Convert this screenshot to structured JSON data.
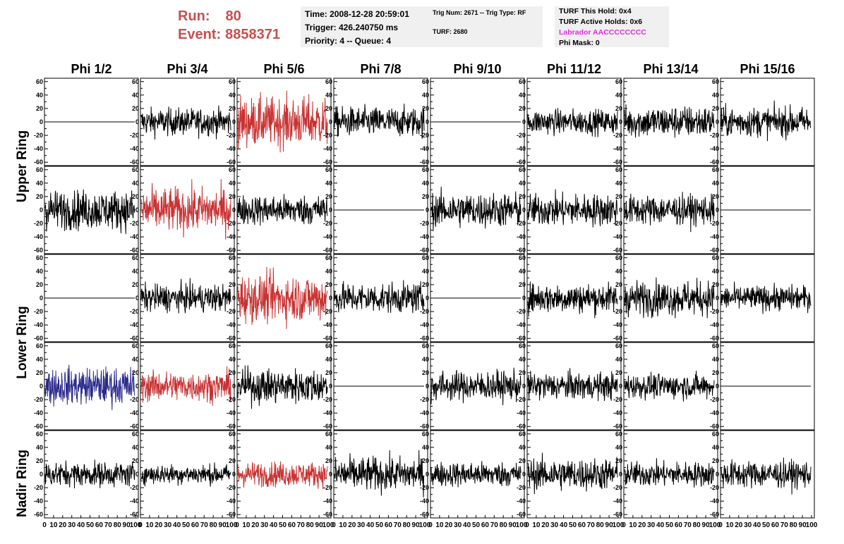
{
  "header": {
    "run_label": "Run:",
    "run_value": "80",
    "event_label": "Event:",
    "event_value": "8858371"
  },
  "info_box_1": {
    "time": "Time: 2008-12-28 20:59:01",
    "trigger": "Trigger: 426.240750 ms",
    "priority": "Priority: 4 -- Queue: 4"
  },
  "info_box_2": {
    "trig": "Trig Num: 2671 -- Trig Type: RF",
    "turf": "TURF: 2680"
  },
  "info_box_3": {
    "hold": "TURF This Hold: 0x4",
    "active": "TURF Active Holds: 0x6",
    "labrador": "Labrador AACCCCCCCC",
    "mask": "Phi Mask: 0"
  },
  "colors": {
    "normal": "#000000",
    "triggered": "#c83232",
    "highlight": "#2b2b8c",
    "labrador": "#e22be0",
    "run_text": "#c84f4f",
    "box_bg": "#f0f0f0"
  },
  "chart_data": {
    "type": "line",
    "columns": [
      "Phi 1/2",
      "Phi 3/4",
      "Phi 5/6",
      "Phi 7/8",
      "Phi 9/10",
      "Phi 11/12",
      "Phi 13/14",
      "Phi 15/16"
    ],
    "row_groups": [
      "Upper Ring",
      "Lower Ring",
      "Nadir Ring"
    ],
    "ylim": [
      -65,
      65
    ],
    "yticks": [
      -60,
      -40,
      -20,
      0,
      20,
      40,
      60
    ],
    "xlim": [
      0,
      100
    ],
    "xticks": [
      0,
      10,
      20,
      30,
      40,
      50,
      60,
      70,
      80,
      90,
      100
    ],
    "grid": false,
    "panels": [
      {
        "row": 0,
        "col": 0,
        "color": "normal",
        "flat": true,
        "amp": 0
      },
      {
        "row": 0,
        "col": 1,
        "color": "normal",
        "flat": false,
        "amp": 22
      },
      {
        "row": 0,
        "col": 2,
        "color": "triggered",
        "flat": false,
        "amp": 40
      },
      {
        "row": 0,
        "col": 3,
        "color": "normal",
        "flat": false,
        "amp": 24
      },
      {
        "row": 0,
        "col": 4,
        "color": "normal",
        "flat": true,
        "amp": 0
      },
      {
        "row": 0,
        "col": 5,
        "color": "normal",
        "flat": false,
        "amp": 20
      },
      {
        "row": 0,
        "col": 6,
        "color": "normal",
        "flat": false,
        "amp": 26
      },
      {
        "row": 0,
        "col": 7,
        "color": "normal",
        "flat": false,
        "amp": 24
      },
      {
        "row": 1,
        "col": 0,
        "color": "normal",
        "flat": false,
        "amp": 32
      },
      {
        "row": 1,
        "col": 1,
        "color": "triggered",
        "flat": false,
        "amp": 36
      },
      {
        "row": 1,
        "col": 2,
        "color": "normal",
        "flat": false,
        "amp": 24
      },
      {
        "row": 1,
        "col": 3,
        "color": "normal",
        "flat": true,
        "amp": 0
      },
      {
        "row": 1,
        "col": 4,
        "color": "normal",
        "flat": false,
        "amp": 28
      },
      {
        "row": 1,
        "col": 5,
        "color": "normal",
        "flat": false,
        "amp": 26
      },
      {
        "row": 1,
        "col": 6,
        "color": "normal",
        "flat": false,
        "amp": 24
      },
      {
        "row": 1,
        "col": 7,
        "color": "normal",
        "flat": true,
        "amp": 0
      },
      {
        "row": 2,
        "col": 0,
        "color": "normal",
        "flat": true,
        "amp": 0
      },
      {
        "row": 2,
        "col": 1,
        "color": "normal",
        "flat": false,
        "amp": 22
      },
      {
        "row": 2,
        "col": 2,
        "color": "triggered",
        "flat": false,
        "amp": 38
      },
      {
        "row": 2,
        "col": 3,
        "color": "normal",
        "flat": false,
        "amp": 24
      },
      {
        "row": 2,
        "col": 4,
        "color": "normal",
        "flat": true,
        "amp": 0
      },
      {
        "row": 2,
        "col": 5,
        "color": "normal",
        "flat": false,
        "amp": 24
      },
      {
        "row": 2,
        "col": 6,
        "color": "normal",
        "flat": false,
        "amp": 28
      },
      {
        "row": 2,
        "col": 7,
        "color": "normal",
        "flat": false,
        "amp": 20
      },
      {
        "row": 3,
        "col": 0,
        "color": "highlight",
        "flat": false,
        "amp": 30
      },
      {
        "row": 3,
        "col": 1,
        "color": "triggered",
        "flat": false,
        "amp": 24
      },
      {
        "row": 3,
        "col": 2,
        "color": "normal",
        "flat": false,
        "amp": 28
      },
      {
        "row": 3,
        "col": 3,
        "color": "normal",
        "flat": true,
        "amp": 0
      },
      {
        "row": 3,
        "col": 4,
        "color": "normal",
        "flat": false,
        "amp": 24
      },
      {
        "row": 3,
        "col": 5,
        "color": "normal",
        "flat": false,
        "amp": 22
      },
      {
        "row": 3,
        "col": 6,
        "color": "normal",
        "flat": false,
        "amp": 20
      },
      {
        "row": 3,
        "col": 7,
        "color": "normal",
        "flat": true,
        "amp": 0
      },
      {
        "row": 4,
        "col": 0,
        "color": "normal",
        "flat": false,
        "amp": 20
      },
      {
        "row": 4,
        "col": 1,
        "color": "normal",
        "flat": false,
        "amp": 16
      },
      {
        "row": 4,
        "col": 2,
        "color": "triggered",
        "flat": false,
        "amp": 20
      },
      {
        "row": 4,
        "col": 3,
        "color": "normal",
        "flat": false,
        "amp": 28
      },
      {
        "row": 4,
        "col": 4,
        "color": "normal",
        "flat": false,
        "amp": 20
      },
      {
        "row": 4,
        "col": 5,
        "color": "normal",
        "flat": false,
        "amp": 26
      },
      {
        "row": 4,
        "col": 6,
        "color": "normal",
        "flat": false,
        "amp": 20
      },
      {
        "row": 4,
        "col": 7,
        "color": "normal",
        "flat": false,
        "amp": 22
      }
    ]
  }
}
